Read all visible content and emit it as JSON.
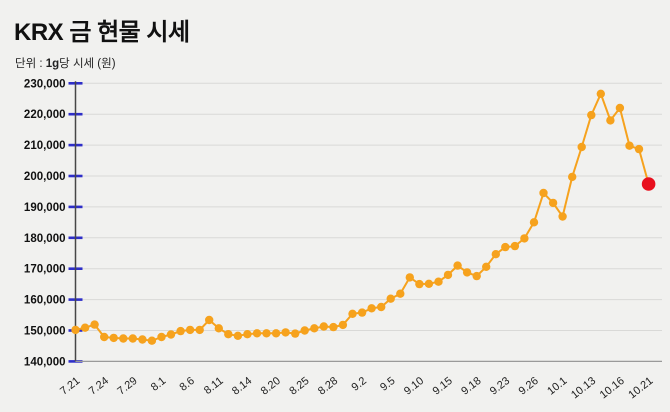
{
  "page": {
    "background": "#f1f1ef"
  },
  "header": {
    "title": "KRX 금 현물 시세",
    "unit_prefix": "단위 : ",
    "unit_bold": "1g",
    "unit_suffix": "당 시세 (원)"
  },
  "chart_data": {
    "type": "line",
    "title": "KRX 금 현물 시세",
    "unit_label": "단위 : 1g당 시세 (원)",
    "ylabel": "",
    "xlabel": "",
    "ylim": [
      140000,
      230000
    ],
    "ytick_step": 10000,
    "ytick_labels": [
      "230,000",
      "220,000",
      "210,000",
      "200,000",
      "190,000",
      "180,000",
      "170,000",
      "160,000",
      "150,000",
      "140,000"
    ],
    "grid": "horizontal",
    "legend": "none",
    "x_tick_indices": [
      0,
      3,
      6,
      9,
      12,
      15,
      18,
      21,
      24,
      27,
      30,
      33,
      36,
      39,
      42,
      45,
      48,
      51,
      54,
      57,
      60
    ],
    "x_tick_labels": [
      "7.21",
      "7.24",
      "7.29",
      "8.1",
      "8.6",
      "8.11",
      "8.14",
      "8.20",
      "8.25",
      "8.28",
      "9.2",
      "9.5",
      "9.10",
      "9.15",
      "9.18",
      "9.23",
      "9.26",
      "10.1",
      "10.13",
      "10.16",
      "10.21"
    ],
    "values": [
      150200,
      150900,
      151900,
      147900,
      147600,
      147400,
      147400,
      147100,
      146700,
      147900,
      148700,
      149800,
      150200,
      150200,
      153400,
      150700,
      148800,
      148300,
      148800,
      149100,
      149100,
      149100,
      149400,
      149000,
      150000,
      150700,
      151300,
      151100,
      151800,
      155400,
      155800,
      157200,
      157600,
      160300,
      161900,
      167200,
      165000,
      165100,
      165800,
      168000,
      171000,
      168800,
      167600,
      170600,
      174700,
      177000,
      177300,
      179800,
      185000,
      194500,
      191300,
      186900,
      199700,
      209400,
      219700,
      226600,
      218000,
      222000,
      209800,
      208700,
      197400
    ],
    "highlight_last_point": true,
    "colors": {
      "line": "#f6a21d",
      "marker": "#f6a21d",
      "last_marker": "#e8101e",
      "y_tick": "#2e2ec8",
      "axis": "#474747",
      "baseline": "#9a9a9a",
      "grid": "#d9d9d7",
      "text": "#111111",
      "background": "#f1f1ef"
    }
  }
}
